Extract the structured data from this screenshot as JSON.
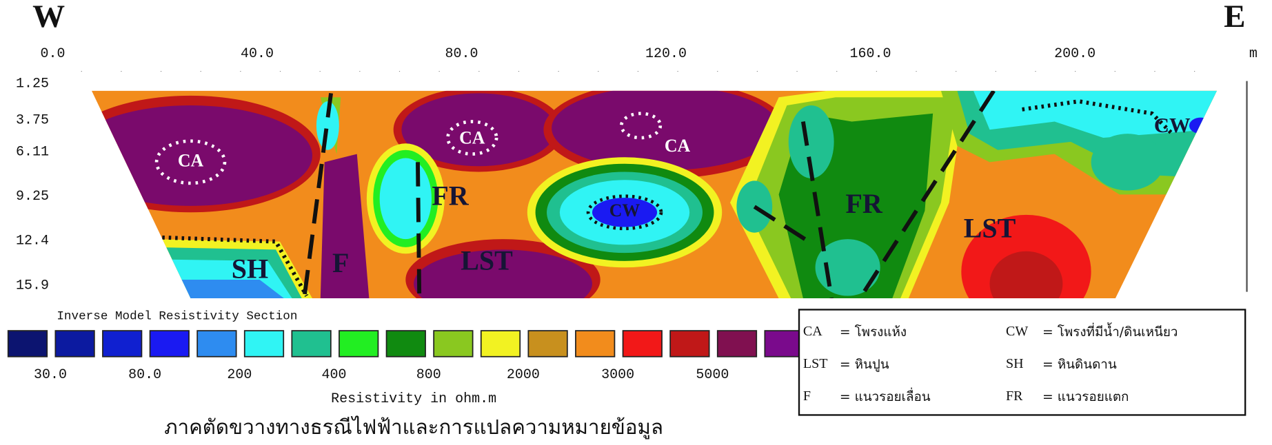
{
  "header": {
    "west": "W",
    "east": "E"
  },
  "x_axis": {
    "labels": [
      "0.0",
      "40.0",
      "80.0",
      "120.0",
      "160.0",
      "200.0"
    ],
    "unit": "m"
  },
  "depth_axis": {
    "labels": [
      "1.25",
      "3.75",
      "6.11",
      "9.25",
      "12.4",
      "15.9"
    ]
  },
  "section": {
    "labels": [
      "CA",
      "CA",
      "CA",
      "CW",
      "CW",
      "FR",
      "FR",
      "LST",
      "LST",
      "SH",
      "F"
    ]
  },
  "scale": {
    "title": "Inverse Model Resistivity Section",
    "colors": [
      "#0c1470",
      "#0c1aa0",
      "#1020d0",
      "#1a1af2",
      "#2e8cf0",
      "#30f4f4",
      "#20c090",
      "#22ee22",
      "#108a10",
      "#8ac820",
      "#f2f222",
      "#c8901e",
      "#f28c1c",
      "#f21818",
      "#c01818",
      "#801050",
      "#7a0a8c"
    ],
    "labels": [
      "30.0",
      "80.0",
      "200",
      "400",
      "800",
      "2000",
      "3000",
      "5000"
    ],
    "unit_label": "Resistivity in ohm.m"
  },
  "caption": "ภาคตัดขวางทางธรณีไฟฟ้าและการแปลความหมายข้อมูล",
  "legend": {
    "items": [
      {
        "key": "CA",
        "desc": "= โพรงแห้ง"
      },
      {
        "key": "CW",
        "desc": "= โพรงที่มีน้ำ/ดินเหนียว"
      },
      {
        "key": "LST",
        "desc": "= หินปูน"
      },
      {
        "key": "SH",
        "desc": "= หินดินดาน"
      },
      {
        "key": "F",
        "desc": "= แนวรอยเลื่อน"
      },
      {
        "key": "FR",
        "desc": "= แนวรอยแตก"
      }
    ]
  }
}
